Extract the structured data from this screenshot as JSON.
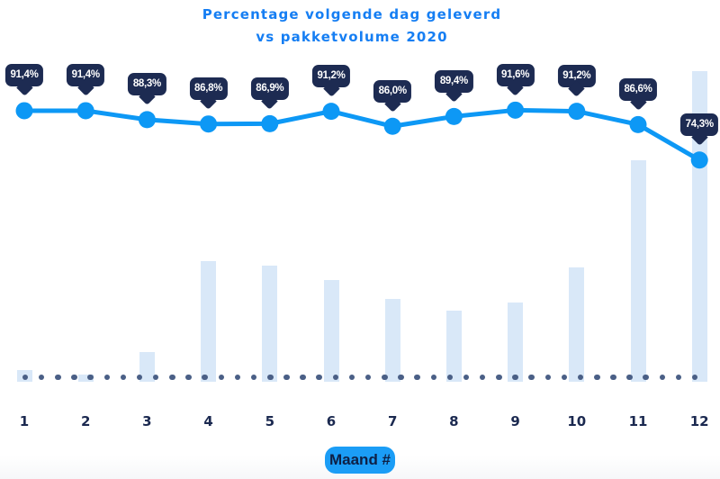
{
  "title": {
    "line1": "Percentage volgende dag geleverd",
    "line2": "vs pakketvolume 2020"
  },
  "x_axis_badge": "Maand #",
  "chart_data": {
    "type": "line",
    "title": "Percentage volgende dag geleverd vs pakketvolume 2020",
    "categories": [
      "1",
      "2",
      "3",
      "4",
      "5",
      "6",
      "7",
      "8",
      "9",
      "10",
      "11",
      "12"
    ],
    "xlabel": "Maand #",
    "ylabel": "",
    "legend": "none",
    "grid": "none",
    "y_axis_visible": false,
    "baseline_dotted": true,
    "series": [
      {
        "name": "Percentage volgende dag geleverd",
        "type": "line",
        "unit": "%",
        "values": [
          91.4,
          91.4,
          88.3,
          86.8,
          86.9,
          91.2,
          86.0,
          89.4,
          91.6,
          91.2,
          86.6,
          74.3
        ],
        "point_labels": [
          "91,4%",
          "91,4%",
          "88,3%",
          "86,8%",
          "86,9%",
          "91,2%",
          "86,0%",
          "89,4%",
          "91,6%",
          "91,2%",
          "86,6%",
          "74,3%"
        ]
      },
      {
        "name": "Pakketvolume 2020",
        "type": "bar",
        "unit": "percent of tallest bar (volume axis not shown)",
        "values_pct_of_max": [
          3.9,
          2.2,
          9.6,
          38.8,
          37.5,
          32.8,
          26.8,
          22.9,
          25.5,
          36.7,
          71.2,
          100
        ]
      }
    ],
    "colors": {
      "line": "#0d98f5",
      "bar": "#d9e8f8",
      "label_bubble": "#1d2b52",
      "label_text": "#ffffff",
      "axis_text": "#1b2950",
      "dotted_baseline": "#4a5f86",
      "badge_bg": "#1b9df6",
      "badge_text": "#0e2045",
      "title": "#157ef3"
    }
  }
}
